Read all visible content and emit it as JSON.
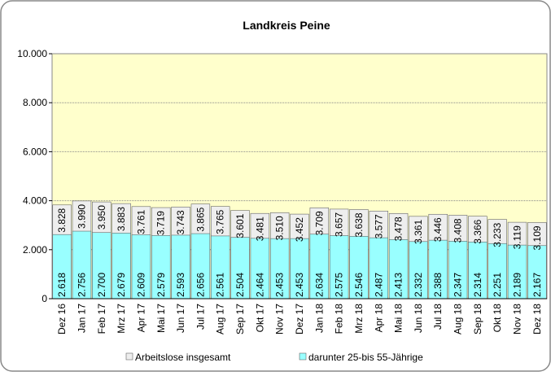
{
  "chart_data": {
    "type": "bar",
    "title": "Landkreis Peine",
    "categories": [
      "Dez 16",
      "Jan 17",
      "Feb 17",
      "Mrz 17",
      "Apr 17",
      "Mai 17",
      "Jun 17",
      "Jul 17",
      "Aug 17",
      "Sep 17",
      "Okt 17",
      "Nov 17",
      "Dez 17",
      "Jan 18",
      "Feb 18",
      "Mrz 18",
      "Apr 18",
      "Mai 18",
      "Jun 18",
      "Jul 18",
      "Aug 18",
      "Sep 18",
      "Okt 18",
      "Nov 18",
      "Dez 18"
    ],
    "series": [
      {
        "name": "Arbeitslose insgesamt",
        "color": "#eeeeee",
        "values": [
          3828,
          3990,
          3950,
          3883,
          3761,
          3719,
          3743,
          3865,
          3765,
          3601,
          3481,
          3510,
          3452,
          3709,
          3657,
          3638,
          3577,
          3478,
          3361,
          3446,
          3408,
          3366,
          3233,
          3119,
          3109
        ],
        "value_labels": [
          "3.828",
          "3.990",
          "3.950",
          "3.883",
          "3.761",
          "3.719",
          "3.743",
          "3.865",
          "3.765",
          "3.601",
          "3.481",
          "3.510",
          "3.452",
          "3.709",
          "3.657",
          "3.638",
          "3.577",
          "3.478",
          "3.361",
          "3.446",
          "3.408",
          "3.366",
          "3.233",
          "3.119",
          "3.109"
        ]
      },
      {
        "name": "darunter 25-bis 55-Jährige",
        "color": "#99ffff",
        "values": [
          2618,
          2756,
          2700,
          2679,
          2609,
          2579,
          2593,
          2656,
          2561,
          2504,
          2464,
          2453,
          2453,
          2634,
          2575,
          2546,
          2487,
          2413,
          2332,
          2388,
          2347,
          2314,
          2251,
          2189,
          2167
        ],
        "value_labels": [
          "2.618",
          "2.756",
          "2.700",
          "2.679",
          "2.609",
          "2.579",
          "2.593",
          "2.656",
          "2.561",
          "2.504",
          "2.464",
          "2.453",
          "2.453",
          "2.634",
          "2.575",
          "2.546",
          "2.487",
          "2.413",
          "2.332",
          "2.388",
          "2.347",
          "2.314",
          "2.251",
          "2.189",
          "2.167"
        ]
      }
    ],
    "ylim": [
      0,
      10000
    ],
    "yticks": [
      0,
      {
        "value": 2000,
        "label": "2.000"
      },
      {
        "value": 4000,
        "label": "4.000"
      },
      {
        "value": 6000,
        "label": "6.000"
      },
      {
        "value": 8000,
        "label": "8.000"
      },
      {
        "value": 10000,
        "label": "10.000"
      }
    ],
    "grid": true,
    "plot_background": "#ffffcc"
  }
}
